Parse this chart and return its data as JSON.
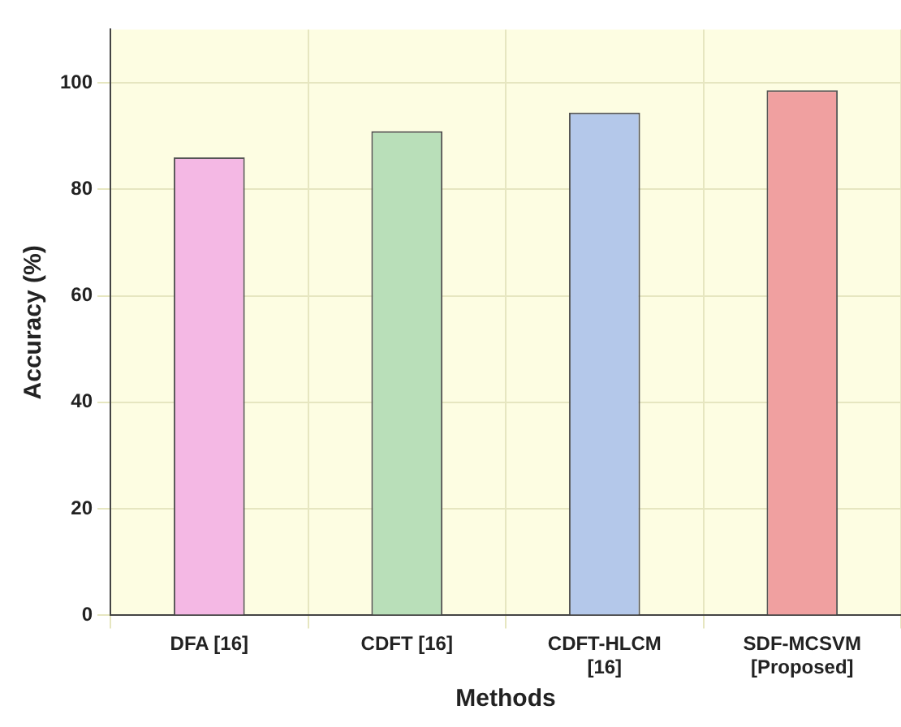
{
  "chart_data": {
    "type": "bar",
    "xlabel": "Methods",
    "ylabel": "Accuracy (%)",
    "categories": [
      "DFA [16]",
      "CDFT [16]",
      "CDFT-HLCM [16]",
      "SDF-MCSVM [Proposed]"
    ],
    "values": [
      86.0,
      90.9,
      94.4,
      98.6
    ],
    "colors": [
      "#f4b8e4",
      "#b9dfb9",
      "#b4c8ea",
      "#f0a0a0"
    ],
    "ylim": [
      0,
      110
    ],
    "yticks": [
      0,
      20,
      40,
      60,
      80,
      100
    ],
    "grid": true,
    "legend": false
  }
}
